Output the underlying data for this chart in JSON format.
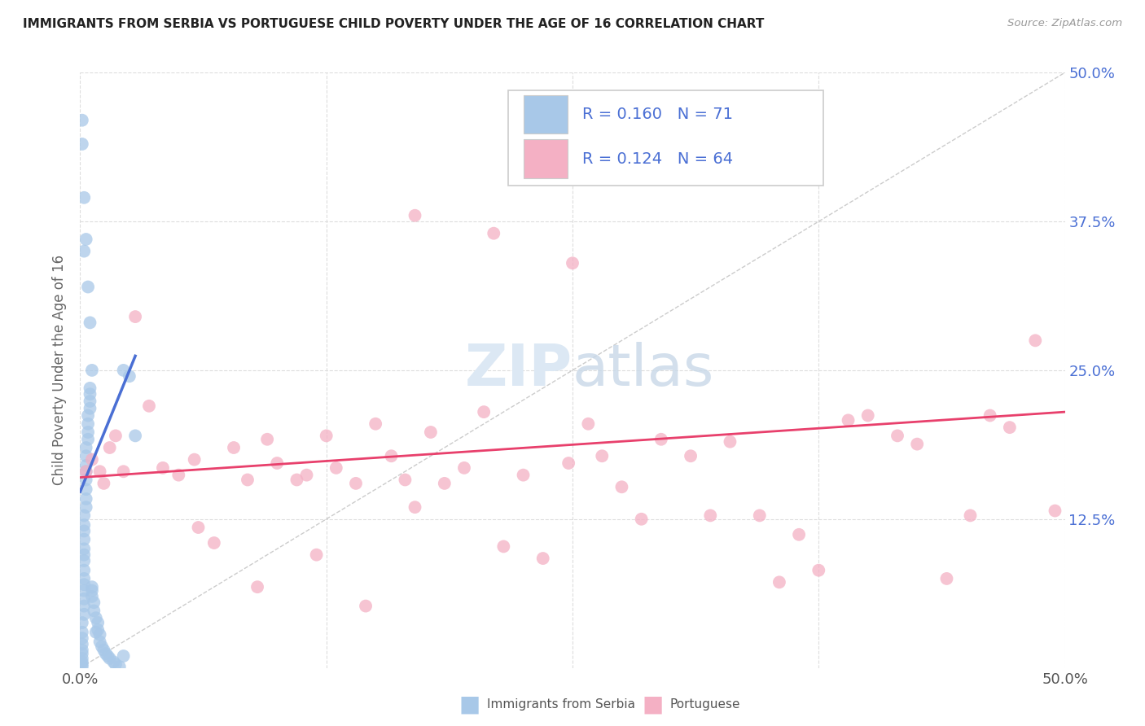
{
  "title": "IMMIGRANTS FROM SERBIA VS PORTUGUESE CHILD POVERTY UNDER THE AGE OF 16 CORRELATION CHART",
  "source": "Source: ZipAtlas.com",
  "ylabel": "Child Poverty Under the Age of 16",
  "xlim": [
    0,
    0.5
  ],
  "ylim": [
    0,
    0.5
  ],
  "xtick_labels": [
    "0.0%",
    "",
    "",
    "",
    "50.0%"
  ],
  "xtick_vals": [
    0.0,
    0.125,
    0.25,
    0.375,
    0.5
  ],
  "right_ytick_labels": [
    "50.0%",
    "37.5%",
    "25.0%",
    "12.5%"
  ],
  "right_ytick_vals": [
    0.5,
    0.375,
    0.25,
    0.125
  ],
  "serbia_R": 0.16,
  "serbia_N": 71,
  "portuguese_R": 0.124,
  "portuguese_N": 64,
  "serbia_color": "#a8c8e8",
  "portuguese_color": "#f4b0c4",
  "serbia_line_color": "#4a6fd4",
  "portuguese_line_color": "#e8406c",
  "legend_text_color": "#4a6fd4",
  "watermark_color": "#dce8f4",
  "serbia_x": [
    0.001,
    0.001,
    0.001,
    0.001,
    0.001,
    0.001,
    0.001,
    0.001,
    0.001,
    0.001,
    0.002,
    0.002,
    0.002,
    0.002,
    0.002,
    0.002,
    0.002,
    0.002,
    0.002,
    0.002,
    0.002,
    0.002,
    0.002,
    0.002,
    0.003,
    0.003,
    0.003,
    0.003,
    0.003,
    0.003,
    0.003,
    0.003,
    0.004,
    0.004,
    0.004,
    0.004,
    0.005,
    0.005,
    0.005,
    0.005,
    0.006,
    0.006,
    0.006,
    0.007,
    0.007,
    0.008,
    0.008,
    0.009,
    0.009,
    0.01,
    0.01,
    0.011,
    0.012,
    0.013,
    0.014,
    0.015,
    0.017,
    0.018,
    0.02,
    0.022,
    0.001,
    0.001,
    0.002,
    0.002,
    0.003,
    0.004,
    0.005,
    0.006,
    0.022,
    0.025,
    0.028
  ],
  "serbia_y": [
    0.02,
    0.015,
    0.012,
    0.008,
    0.005,
    0.003,
    0.001,
    0.025,
    0.03,
    0.038,
    0.045,
    0.052,
    0.058,
    0.065,
    0.07,
    0.075,
    0.082,
    0.09,
    0.095,
    0.1,
    0.108,
    0.115,
    0.12,
    0.128,
    0.135,
    0.142,
    0.15,
    0.158,
    0.165,
    0.17,
    0.178,
    0.185,
    0.192,
    0.198,
    0.205,
    0.212,
    0.218,
    0.224,
    0.23,
    0.235,
    0.06,
    0.065,
    0.068,
    0.048,
    0.055,
    0.03,
    0.042,
    0.032,
    0.038,
    0.028,
    0.022,
    0.018,
    0.015,
    0.012,
    0.01,
    0.008,
    0.005,
    0.003,
    0.001,
    0.01,
    0.46,
    0.44,
    0.395,
    0.35,
    0.36,
    0.32,
    0.29,
    0.25,
    0.25,
    0.245,
    0.195
  ],
  "portuguese_x": [
    0.003,
    0.006,
    0.01,
    0.012,
    0.015,
    0.018,
    0.022,
    0.028,
    0.035,
    0.042,
    0.05,
    0.058,
    0.068,
    0.078,
    0.085,
    0.095,
    0.1,
    0.11,
    0.115,
    0.125,
    0.13,
    0.14,
    0.15,
    0.158,
    0.165,
    0.17,
    0.178,
    0.185,
    0.195,
    0.205,
    0.215,
    0.225,
    0.235,
    0.248,
    0.258,
    0.265,
    0.275,
    0.285,
    0.295,
    0.31,
    0.32,
    0.33,
    0.345,
    0.355,
    0.365,
    0.375,
    0.39,
    0.4,
    0.415,
    0.425,
    0.44,
    0.452,
    0.462,
    0.472,
    0.485,
    0.495,
    0.06,
    0.09,
    0.12,
    0.145,
    0.17,
    0.21,
    0.25,
    0.28
  ],
  "portuguese_y": [
    0.165,
    0.175,
    0.165,
    0.155,
    0.185,
    0.195,
    0.165,
    0.295,
    0.22,
    0.168,
    0.162,
    0.175,
    0.105,
    0.185,
    0.158,
    0.192,
    0.172,
    0.158,
    0.162,
    0.195,
    0.168,
    0.155,
    0.205,
    0.178,
    0.158,
    0.135,
    0.198,
    0.155,
    0.168,
    0.215,
    0.102,
    0.162,
    0.092,
    0.172,
    0.205,
    0.178,
    0.152,
    0.125,
    0.192,
    0.178,
    0.128,
    0.19,
    0.128,
    0.072,
    0.112,
    0.082,
    0.208,
    0.212,
    0.195,
    0.188,
    0.075,
    0.128,
    0.212,
    0.202,
    0.275,
    0.132,
    0.118,
    0.068,
    0.095,
    0.052,
    0.38,
    0.365,
    0.34,
    0.432
  ],
  "serbia_trendline": [
    [
      0.0,
      0.028
    ],
    [
      0.148,
      0.262
    ]
  ],
  "portuguese_trendline": [
    [
      0.0,
      0.5
    ],
    [
      0.16,
      0.215
    ]
  ],
  "diag_line": [
    [
      0.0,
      0.5
    ],
    [
      0.0,
      0.5
    ]
  ],
  "grid_color": "#dddddd",
  "grid_style": "--"
}
